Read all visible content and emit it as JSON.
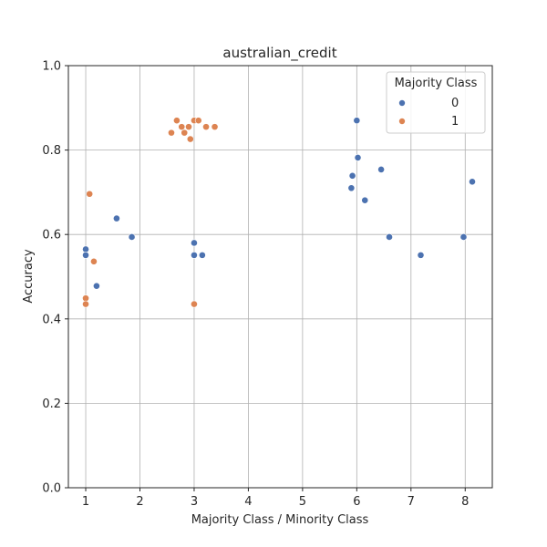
{
  "chart_data": {
    "type": "scatter",
    "title": "australian_credit",
    "xlabel": "Majority Class / Minority Class",
    "ylabel": "Accuracy",
    "xlim": [
      0.68,
      8.5
    ],
    "ylim": [
      0.0,
      1.0
    ],
    "xticks": [
      1,
      2,
      3,
      4,
      5,
      6,
      7,
      8
    ],
    "yticks": [
      0.0,
      0.2,
      0.4,
      0.6,
      0.8,
      1.0
    ],
    "xtick_labels": [
      "1",
      "2",
      "3",
      "4",
      "5",
      "6",
      "7",
      "8"
    ],
    "ytick_labels": [
      "0.0",
      "0.2",
      "0.4",
      "0.6",
      "0.8",
      "1.0"
    ],
    "grid": true,
    "legend": {
      "title": "Majority Class",
      "placement": "top-right"
    },
    "series": [
      {
        "name": "0",
        "color": "#4c72b0",
        "points": [
          [
            1.0,
            0.565
          ],
          [
            1.0,
            0.551
          ],
          [
            1.2,
            0.478
          ],
          [
            1.57,
            0.638
          ],
          [
            1.85,
            0.594
          ],
          [
            3.0,
            0.58
          ],
          [
            3.0,
            0.551
          ],
          [
            3.15,
            0.551
          ],
          [
            5.9,
            0.71
          ],
          [
            5.92,
            0.739
          ],
          [
            6.0,
            0.87
          ],
          [
            6.02,
            0.782
          ],
          [
            6.15,
            0.681
          ],
          [
            6.45,
            0.754
          ],
          [
            6.6,
            0.594
          ],
          [
            7.18,
            0.551
          ],
          [
            7.97,
            0.594
          ],
          [
            8.13,
            0.725
          ]
        ]
      },
      {
        "name": "1",
        "color": "#dd8452",
        "points": [
          [
            1.0,
            0.449
          ],
          [
            1.0,
            0.435
          ],
          [
            1.07,
            0.696
          ],
          [
            1.15,
            0.536
          ],
          [
            2.58,
            0.841
          ],
          [
            2.68,
            0.87
          ],
          [
            2.77,
            0.855
          ],
          [
            2.82,
            0.841
          ],
          [
            2.9,
            0.855
          ],
          [
            2.93,
            0.826
          ],
          [
            3.0,
            0.87
          ],
          [
            3.08,
            0.87
          ],
          [
            3.22,
            0.855
          ],
          [
            3.38,
            0.855
          ],
          [
            3.0,
            0.435
          ]
        ]
      }
    ]
  }
}
